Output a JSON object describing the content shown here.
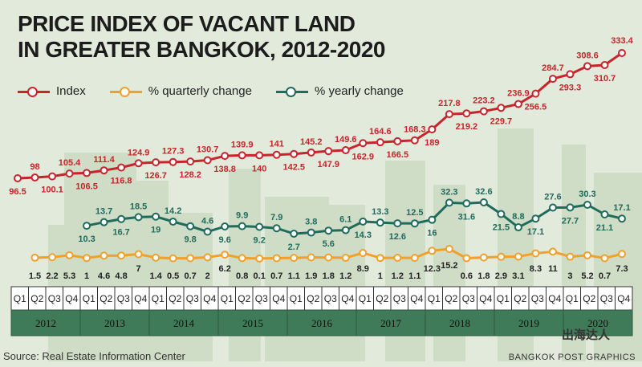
{
  "title_line1": "PRICE INDEX OF VACANT LAND",
  "title_line2": "IN GREATER BANGKOK, 2012-2020",
  "source": "Source: Real Estate Information Center",
  "credit": "BANGKOK POST GRAPHICS",
  "watermark": "出海达人",
  "colors": {
    "index": "#c8242b",
    "quarterly": "#f0a12c",
    "yearly": "#1f6b5c",
    "axis_bar": "#3f7a59"
  },
  "chart_data": {
    "type": "line",
    "title": "PRICE INDEX OF VACANT LAND IN GREATER BANGKOK, 2012-2020",
    "xlabel": "",
    "ylabel": "",
    "legend": "top-left",
    "quarters": [
      "Q1",
      "Q2",
      "Q3",
      "Q4"
    ],
    "years": [
      "2012",
      "2013",
      "2014",
      "2015",
      "2016",
      "2017",
      "2018",
      "2019",
      "2020"
    ],
    "series": [
      {
        "name": "Index",
        "values": [
          96.5,
          98.0,
          100.1,
          105.4,
          106.5,
          111.4,
          116.8,
          124.9,
          126.7,
          127.3,
          128.2,
          130.7,
          138.8,
          139.9,
          140.0,
          141.0,
          142.5,
          145.2,
          147.9,
          149.6,
          162.9,
          164.6,
          166.5,
          168.3,
          189.0,
          217.8,
          219.2,
          223.2,
          229.7,
          236.9,
          256.5,
          284.7,
          293.3,
          308.6,
          310.7,
          333.4
        ]
      },
      {
        "name": "% yearly change",
        "values": [
          null,
          null,
          null,
          null,
          10.3,
          13.7,
          16.7,
          18.5,
          19.0,
          14.2,
          9.8,
          4.6,
          9.6,
          9.9,
          9.2,
          7.9,
          2.7,
          3.8,
          5.6,
          6.1,
          14.3,
          13.3,
          12.6,
          12.5,
          16.0,
          32.3,
          31.6,
          32.6,
          21.5,
          8.8,
          17.1,
          27.6,
          27.7,
          30.3,
          21.1,
          17.1
        ]
      },
      {
        "name": "% quarterly change",
        "values": [
          null,
          1.5,
          2.2,
          5.3,
          1.0,
          4.6,
          4.8,
          7.0,
          1.4,
          0.5,
          0.7,
          2.0,
          6.2,
          0.8,
          0.1,
          0.7,
          1.1,
          1.9,
          1.8,
          1.2,
          8.9,
          1.0,
          1.2,
          1.1,
          12.3,
          15.2,
          0.6,
          1.8,
          2.9,
          3.1,
          8.3,
          11,
          3.0,
          5.2,
          0.7,
          7.3
        ]
      }
    ]
  }
}
